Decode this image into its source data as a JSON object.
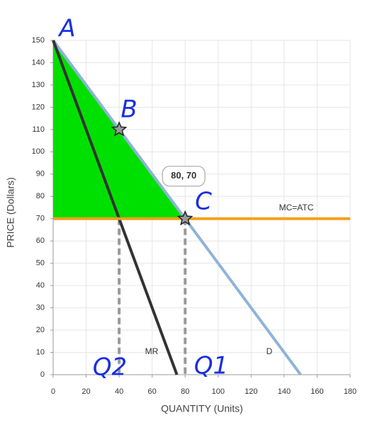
{
  "chart_data": {
    "type": "line",
    "x_label": "QUANTITY (Units)",
    "y_label": "PRICE (Dollars)",
    "xlim": [
      0,
      180
    ],
    "ylim": [
      0,
      150
    ],
    "xticks": [
      0,
      20,
      40,
      60,
      80,
      100,
      120,
      140,
      160,
      180
    ],
    "yticks": [
      0,
      10,
      20,
      30,
      40,
      50,
      60,
      70,
      80,
      90,
      100,
      110,
      120,
      130,
      140,
      150
    ],
    "grid": true,
    "series": [
      {
        "name": "D",
        "color": "#8fb3d9",
        "x": [
          0,
          150
        ],
        "values": [
          150,
          0
        ]
      },
      {
        "name": "MR",
        "color": "#333333",
        "x": [
          0,
          75
        ],
        "values": [
          150,
          0
        ]
      },
      {
        "name": "MC=ATC",
        "color": "#f5a01a",
        "x": [
          0,
          180
        ],
        "values": [
          70,
          70
        ]
      }
    ],
    "guides": [
      {
        "x": [
          40,
          40
        ],
        "values": [
          70,
          0
        ]
      },
      {
        "x": [
          80,
          80
        ],
        "values": [
          70,
          0
        ]
      }
    ],
    "points": [
      {
        "x": 40,
        "y": 110
      },
      {
        "x": 80,
        "y": 70,
        "label": "80, 70"
      }
    ],
    "shaded_area": {
      "color": "#00e000",
      "x": [
        0,
        80,
        0
      ],
      "values": [
        150,
        70,
        70
      ]
    },
    "annotations": [
      "A",
      "B",
      "C",
      "Q2",
      "Q1"
    ]
  }
}
